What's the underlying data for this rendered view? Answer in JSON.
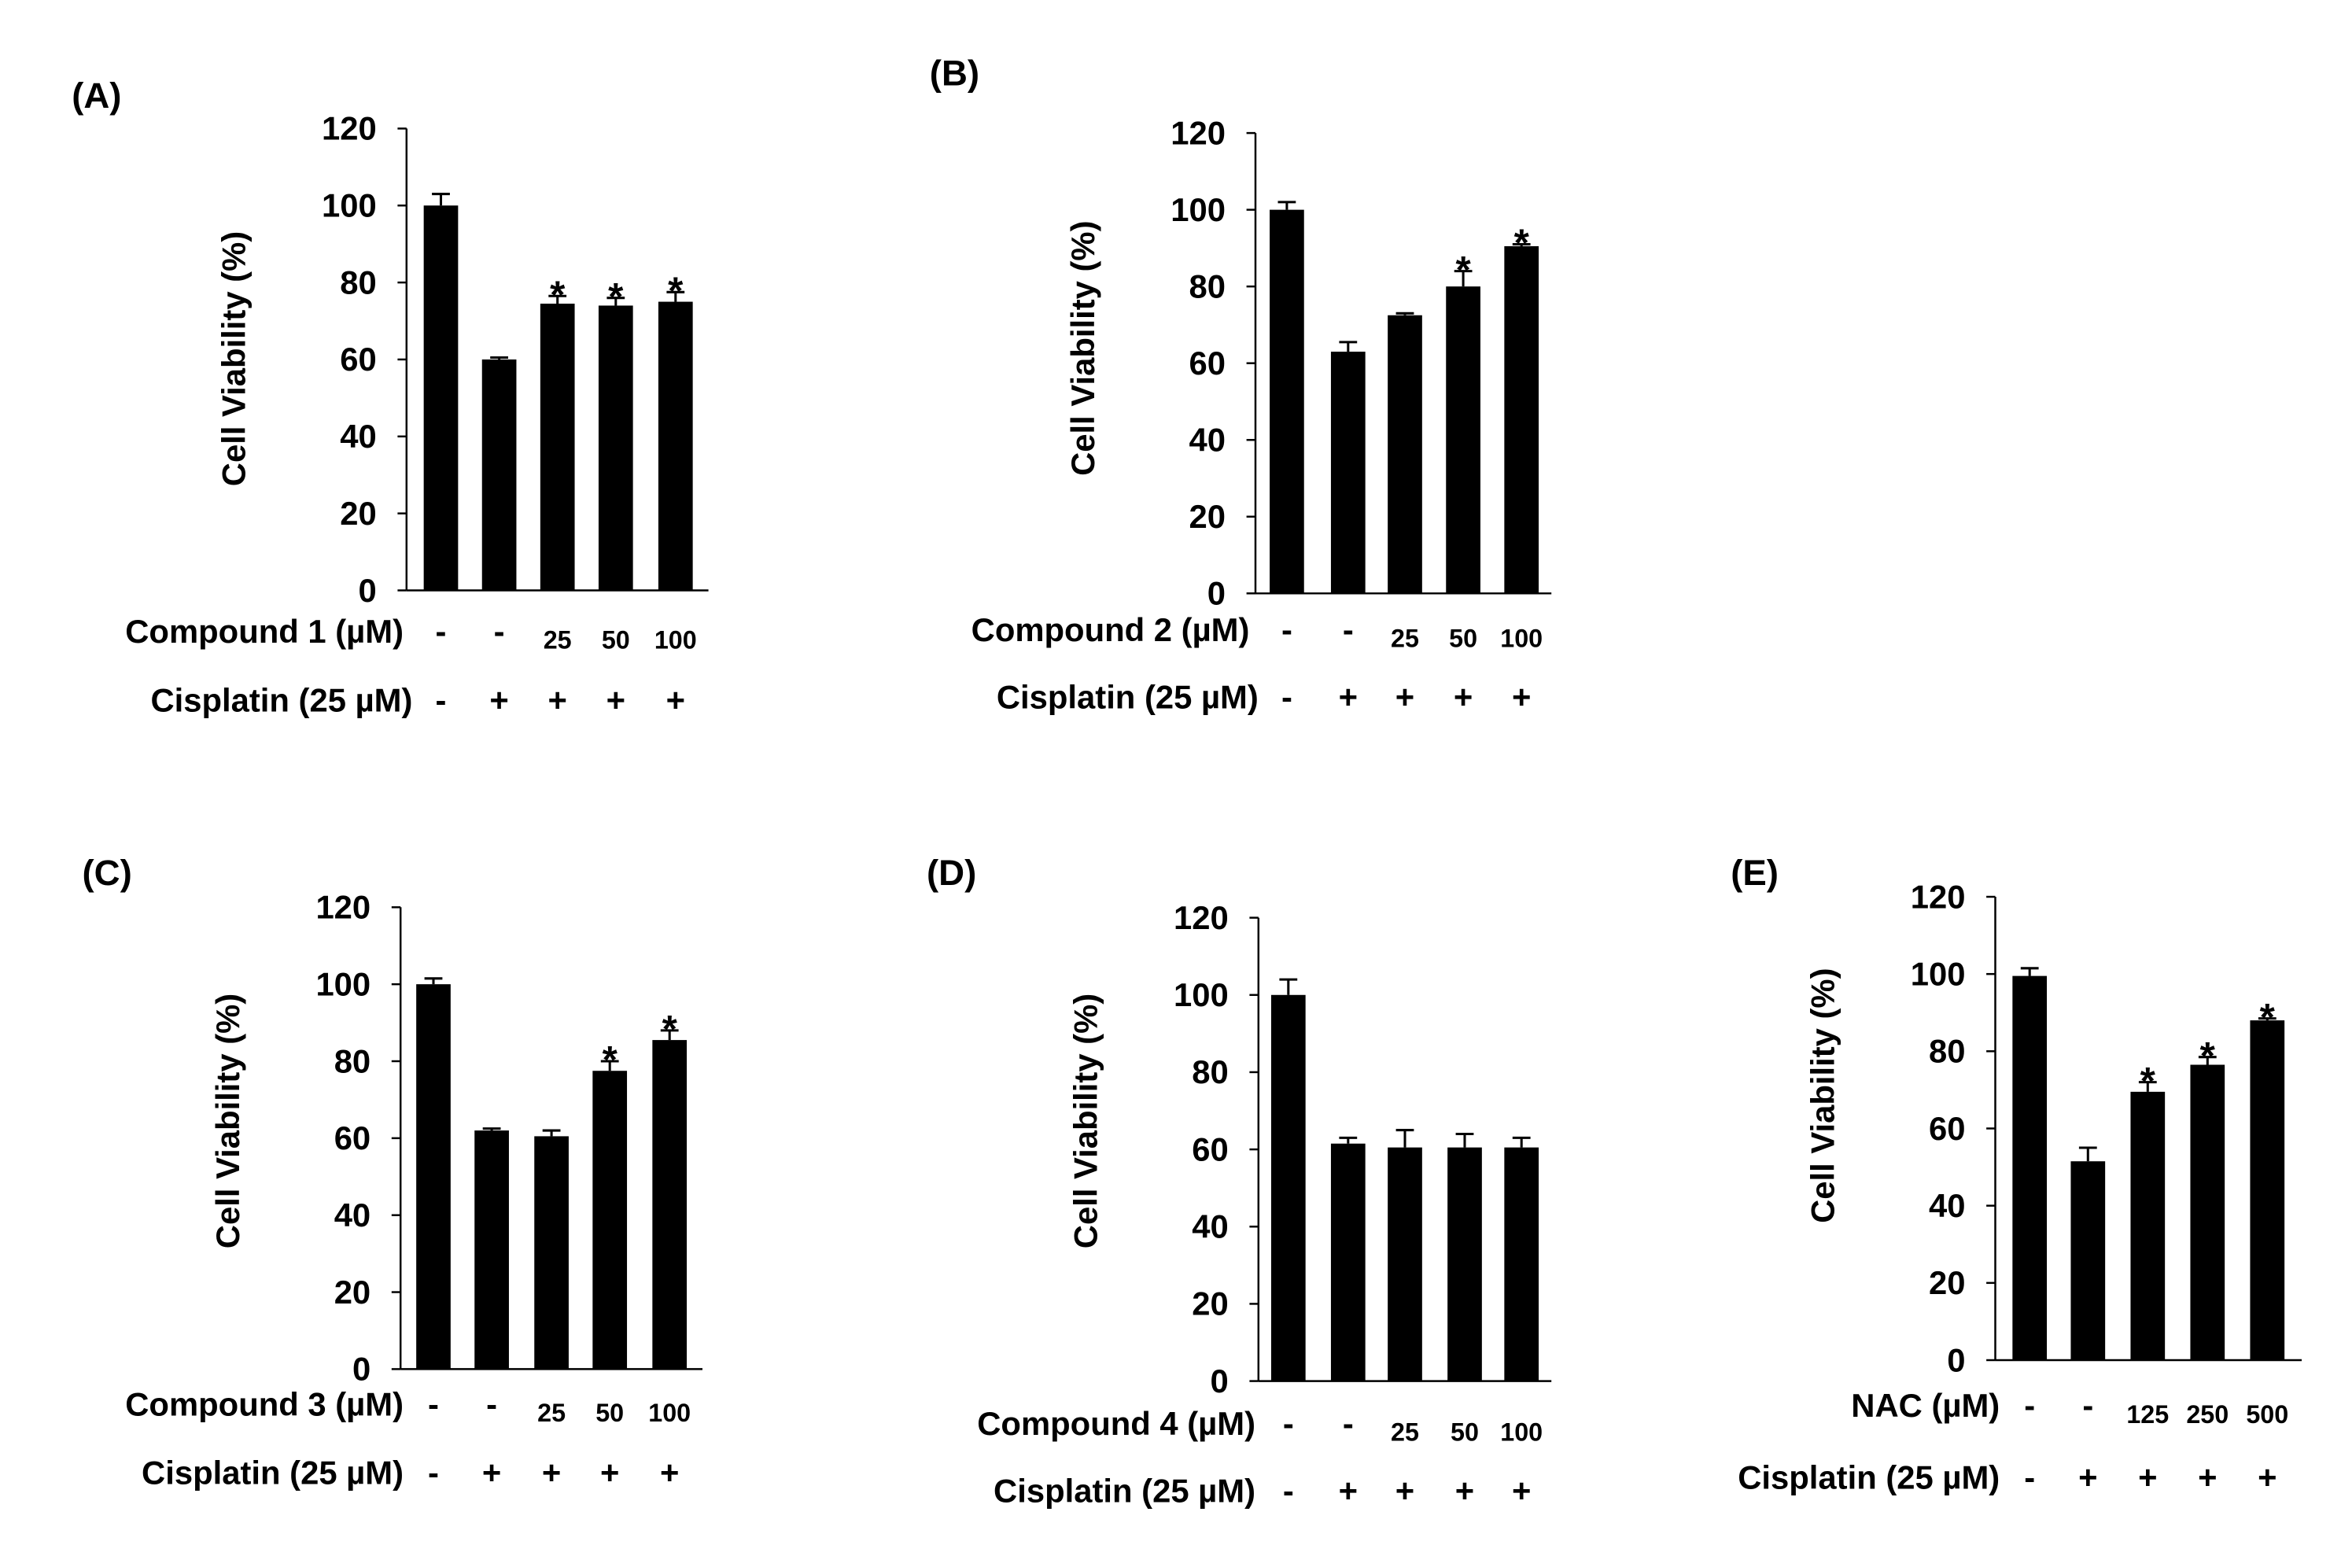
{
  "colors": {
    "bar": "#000000",
    "axis": "#000000",
    "background": "#ffffff"
  },
  "chart_data": [
    {
      "type": "bar",
      "panel_label": "(A)",
      "ylabel": "Cell Viability  (%)",
      "ylim": [
        0,
        120
      ],
      "yticks": [
        "0",
        "20",
        "40",
        "60",
        "80",
        "100",
        "120"
      ],
      "row1_label": "Compound 1 (µM)",
      "row1_values": [
        "-",
        "-",
        "25",
        "50",
        "100"
      ],
      "row2_label": "Cisplatin (25 µM)",
      "row2_values": [
        "-",
        "+",
        "+",
        "+",
        "+"
      ],
      "values": [
        100,
        60,
        74.5,
        74,
        75
      ],
      "errors": [
        3,
        0.5,
        2,
        2,
        2.5
      ],
      "significance": [
        "",
        "",
        "*",
        "*",
        "*"
      ]
    },
    {
      "type": "bar",
      "panel_label": "(B)",
      "ylabel": "Cell Viability  (%)",
      "ylim": [
        0,
        120
      ],
      "yticks": [
        "0",
        "20",
        "40",
        "60",
        "80",
        "100",
        "120"
      ],
      "row1_label": "Compound 2 (µM)",
      "row1_values": [
        "-",
        "-",
        "25",
        "50",
        "100"
      ],
      "row2_label": "Cisplatin (25 µM)",
      "row2_values": [
        "-",
        "+",
        "+",
        "+",
        "+"
      ],
      "values": [
        100,
        63,
        72.5,
        80,
        90.5
      ],
      "errors": [
        2,
        2.5,
        0.5,
        4,
        0.5
      ],
      "significance": [
        "",
        "",
        "",
        "*",
        "*"
      ]
    },
    {
      "type": "bar",
      "panel_label": "(C)",
      "ylabel": "Cell Viability  (%)",
      "ylim": [
        0,
        120
      ],
      "yticks": [
        "0",
        "20",
        "40",
        "60",
        "80",
        "100",
        "120"
      ],
      "row1_label": "Compound 3 (µM)",
      "row1_values": [
        "-",
        "-",
        "25",
        "50",
        "100"
      ],
      "row2_label": "Cisplatin (25 µM)",
      "row2_values": [
        "-",
        "+",
        "+",
        "+",
        "+"
      ],
      "values": [
        100,
        62,
        60.5,
        77.5,
        85.5
      ],
      "errors": [
        1.5,
        0.5,
        1.5,
        2.5,
        2.5
      ],
      "significance": [
        "",
        "",
        "",
        "*",
        "*"
      ]
    },
    {
      "type": "bar",
      "panel_label": "(D)",
      "ylabel": "Cell Viability  (%)",
      "ylim": [
        0,
        120
      ],
      "yticks": [
        "0",
        "20",
        "40",
        "60",
        "80",
        "100",
        "120"
      ],
      "row1_label": "Compound 4 (µM)",
      "row1_values": [
        "-",
        "-",
        "25",
        "50",
        "100"
      ],
      "row2_label": "Cisplatin (25 µM)",
      "row2_values": [
        "-",
        "+",
        "+",
        "+",
        "+"
      ],
      "values": [
        100,
        61.5,
        60.5,
        60.5,
        60.5
      ],
      "errors": [
        4,
        1.5,
        4.5,
        3.5,
        2.5
      ],
      "significance": [
        "",
        "",
        "",
        "",
        ""
      ]
    },
    {
      "type": "bar",
      "panel_label": "(E)",
      "ylabel": "Cell Viability  (%)",
      "ylim": [
        0,
        120
      ],
      "yticks": [
        "0",
        "20",
        "40",
        "60",
        "80",
        "100",
        "120"
      ],
      "row1_label": "NAC (µM)",
      "row1_values": [
        "-",
        "-",
        "125",
        "250",
        "500"
      ],
      "row2_label": "Cisplatin (25 µM)",
      "row2_values": [
        "-",
        "+",
        "+",
        "+",
        "+"
      ],
      "values": [
        99.5,
        51.5,
        69.5,
        76.5,
        88
      ],
      "errors": [
        2,
        3.5,
        2.5,
        2,
        0.5
      ],
      "significance": [
        "",
        "",
        "*",
        "*",
        "*"
      ]
    }
  ]
}
